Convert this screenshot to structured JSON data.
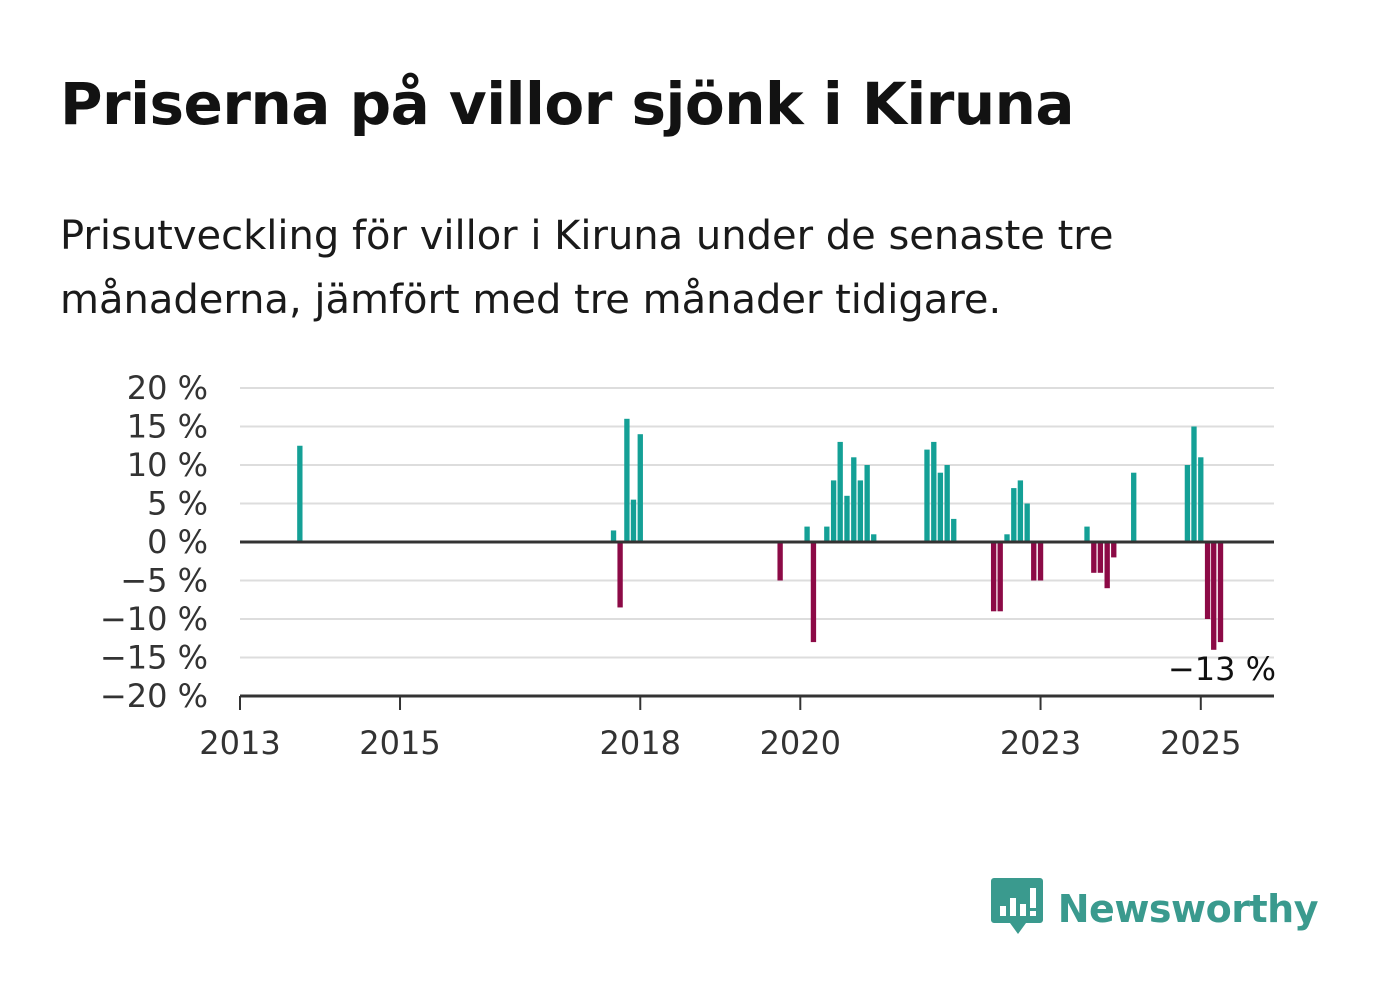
{
  "title": "Priserna på villor sjönk i Kiruna",
  "subtitle": "Prisutveckling för villor i Kiruna under de senaste tre månaderna, jämfört med tre månader tidigare.",
  "brand": {
    "name": "Newsworthy",
    "icon": "newsworthy-logo-icon",
    "color": "#3a9a8e"
  },
  "colors": {
    "positive": "#14a096",
    "negative": "#8c0a46",
    "grid": "#dddddd",
    "axis": "#333333"
  },
  "chart_data": {
    "type": "bar",
    "xlabel": "",
    "ylabel": "",
    "ylim": [
      -20,
      20
    ],
    "xlim": [
      "2013-01-01",
      "2025-12-01"
    ],
    "grid": true,
    "y_ticks": [
      20,
      15,
      10,
      5,
      0,
      -5,
      -10,
      -15,
      -20
    ],
    "y_tick_labels": [
      "20 %",
      "15 %",
      "10 %",
      "5 %",
      "0 %",
      "−5 %",
      "−10 %",
      "−15 %",
      "−20 %"
    ],
    "x_ticks": [
      "2013-01-01",
      "2015-01-01",
      "2018-01-01",
      "2020-01-01",
      "2023-01-01",
      "2025-01-01"
    ],
    "x_tick_labels": [
      "2013",
      "2015",
      "2018",
      "2020",
      "2023",
      "2025"
    ],
    "annotation": {
      "text": "−13 %",
      "date": "2025-04-01",
      "value": -13
    },
    "series": [
      {
        "values": [
          {
            "date": "2013-10-01",
            "value": 12.5
          },
          {
            "date": "2017-09-01",
            "value": 1.5
          },
          {
            "date": "2017-10-01",
            "value": -8.5
          },
          {
            "date": "2017-11-01",
            "value": 16
          },
          {
            "date": "2017-12-01",
            "value": 5.5
          },
          {
            "date": "2018-01-01",
            "value": 14
          },
          {
            "date": "2019-10-01",
            "value": -5
          },
          {
            "date": "2020-02-01",
            "value": 2
          },
          {
            "date": "2020-03-01",
            "value": -13
          },
          {
            "date": "2020-05-01",
            "value": 2
          },
          {
            "date": "2020-06-01",
            "value": 8
          },
          {
            "date": "2020-07-01",
            "value": 13
          },
          {
            "date": "2020-08-01",
            "value": 6
          },
          {
            "date": "2020-09-01",
            "value": 11
          },
          {
            "date": "2020-10-01",
            "value": 8
          },
          {
            "date": "2020-11-01",
            "value": 10
          },
          {
            "date": "2020-12-01",
            "value": 1
          },
          {
            "date": "2021-08-01",
            "value": 12
          },
          {
            "date": "2021-09-01",
            "value": 13
          },
          {
            "date": "2021-10-01",
            "value": 9
          },
          {
            "date": "2021-11-01",
            "value": 10
          },
          {
            "date": "2021-12-01",
            "value": 3
          },
          {
            "date": "2022-06-01",
            "value": -9
          },
          {
            "date": "2022-07-01",
            "value": -9
          },
          {
            "date": "2022-08-01",
            "value": 1
          },
          {
            "date": "2022-09-01",
            "value": 7
          },
          {
            "date": "2022-10-01",
            "value": 8
          },
          {
            "date": "2022-11-01",
            "value": 5
          },
          {
            "date": "2022-12-01",
            "value": -5
          },
          {
            "date": "2023-01-01",
            "value": -5
          },
          {
            "date": "2023-08-01",
            "value": 2
          },
          {
            "date": "2023-09-01",
            "value": -4
          },
          {
            "date": "2023-10-01",
            "value": -4
          },
          {
            "date": "2023-11-01",
            "value": -6
          },
          {
            "date": "2023-12-01",
            "value": -2
          },
          {
            "date": "2024-03-01",
            "value": 9
          },
          {
            "date": "2024-11-01",
            "value": 10
          },
          {
            "date": "2024-12-01",
            "value": 15
          },
          {
            "date": "2025-01-01",
            "value": 11
          },
          {
            "date": "2025-02-01",
            "value": -10
          },
          {
            "date": "2025-03-01",
            "value": -14
          },
          {
            "date": "2025-04-01",
            "value": -13
          }
        ]
      }
    ]
  }
}
